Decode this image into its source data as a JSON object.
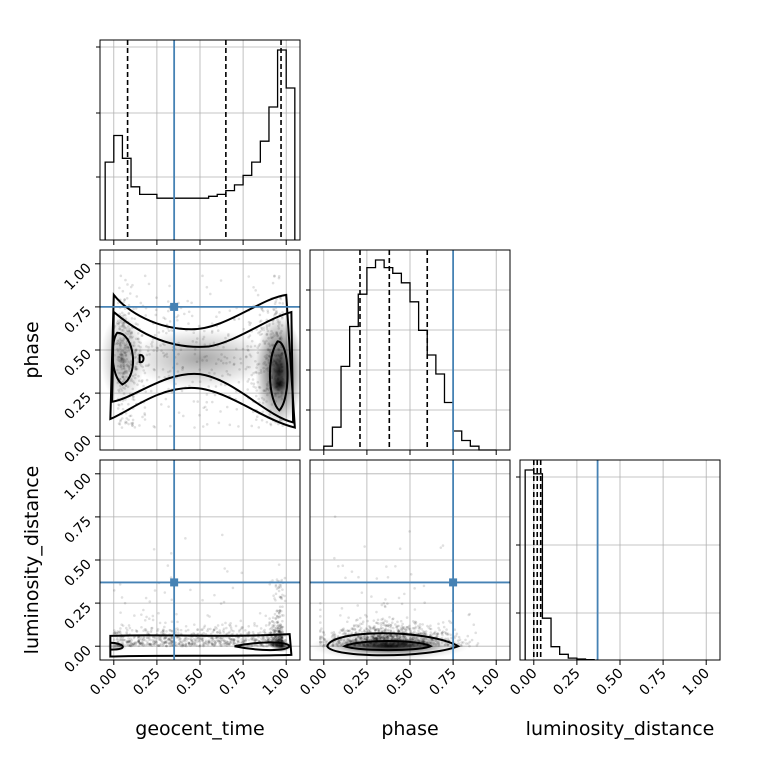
{
  "chart_data": {
    "type": "corner",
    "parameters": [
      "geocent_time",
      "phase",
      "luminosity_distance"
    ],
    "tick_labels": [
      "0.00",
      "0.25",
      "0.50",
      "0.75",
      "1.00"
    ],
    "axis_range": [
      -0.08,
      1.08
    ],
    "truths": {
      "geocent_time": 0.35,
      "phase": 0.75,
      "luminosity_distance": 0.37,
      "color": "#4682b4"
    },
    "quantiles": {
      "geocent_time": [
        0.08,
        0.65,
        0.97
      ],
      "phase": [
        0.21,
        0.38,
        0.6
      ],
      "luminosity_distance": [
        0.0,
        0.02,
        0.04
      ]
    },
    "histograms": {
      "geocent_time": {
        "bin_edges": [
          -0.05,
          0.0,
          0.05,
          0.1,
          0.15,
          0.2,
          0.25,
          0.3,
          0.35,
          0.4,
          0.45,
          0.5,
          0.55,
          0.6,
          0.65,
          0.7,
          0.75,
          0.8,
          0.85,
          0.9,
          0.95,
          1.0,
          1.05
        ],
        "counts": [
          0.41,
          0.55,
          0.43,
          0.28,
          0.24,
          0.24,
          0.22,
          0.22,
          0.22,
          0.22,
          0.22,
          0.22,
          0.23,
          0.24,
          0.26,
          0.29,
          0.34,
          0.41,
          0.52,
          0.7,
          1.0,
          0.8
        ]
      },
      "phase": {
        "bin_edges": [
          0.0,
          0.05,
          0.1,
          0.15,
          0.2,
          0.25,
          0.3,
          0.35,
          0.4,
          0.45,
          0.5,
          0.55,
          0.6,
          0.65,
          0.7,
          0.75,
          0.8,
          0.85,
          0.9,
          0.95,
          1.0
        ],
        "counts": [
          0.02,
          0.12,
          0.44,
          0.65,
          0.82,
          0.96,
          1.0,
          0.96,
          0.93,
          0.88,
          0.78,
          0.63,
          0.5,
          0.4,
          0.25,
          0.1,
          0.05,
          0.02,
          0.0,
          0.0
        ]
      },
      "luminosity_distance": {
        "bin_edges": [
          -0.05,
          0.0,
          0.05,
          0.1,
          0.15,
          0.2,
          0.25,
          0.3,
          0.35
        ],
        "counts": [
          1.0,
          0.98,
          0.22,
          0.07,
          0.03,
          0.01,
          0.005,
          0.002
        ]
      }
    },
    "grid": true
  },
  "labels": {
    "x_geocent": "geocent_time",
    "x_phase": "phase",
    "x_lumdist": "luminosity_distance",
    "y_phase": "phase",
    "y_lumdist": "luminosity_distance"
  }
}
